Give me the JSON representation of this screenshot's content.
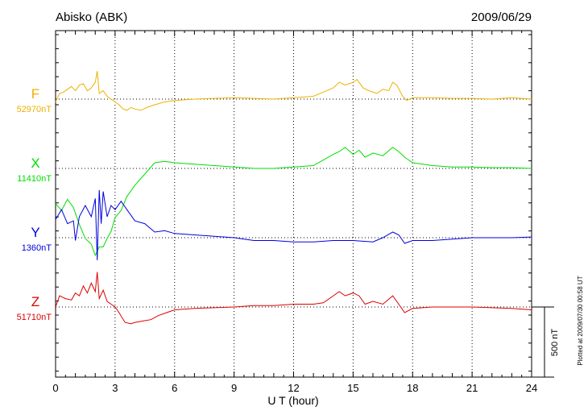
{
  "chart_data": {
    "type": "line",
    "title": "Abisko (ABK)",
    "date": "2009/06/29",
    "xlabel": "U T (hour)",
    "xlim": [
      0,
      24
    ],
    "xticks": [
      "0",
      "3",
      "6",
      "9",
      "12",
      "15",
      "18",
      "21",
      "24"
    ],
    "scale_bar_label": "500 nT",
    "plotted_note": "Plotted at 2009/07/30 00:58 UT",
    "series": [
      {
        "name": "F",
        "baseline_label": "52970nT",
        "color": "#f0b000",
        "x": [
          0,
          0.2,
          0.4,
          0.6,
          0.8,
          1.0,
          1.2,
          1.4,
          1.6,
          1.8,
          2.0,
          2.1,
          2.2,
          2.4,
          2.6,
          2.8,
          3.0,
          3.2,
          3.4,
          3.6,
          3.8,
          4.0,
          4.3,
          4.6,
          5.0,
          5.5,
          6.0,
          7.0,
          8.0,
          9.0,
          10.0,
          11.0,
          12.0,
          13.0,
          13.5,
          14.0,
          14.3,
          14.6,
          15.0,
          15.2,
          15.5,
          15.8,
          16.2,
          16.5,
          16.8,
          17.0,
          17.2,
          17.5,
          17.7,
          18.0,
          19.0,
          20.0,
          21.0,
          22.0,
          23.0,
          24.0
        ],
        "values": [
          -20,
          40,
          50,
          70,
          90,
          60,
          100,
          110,
          60,
          80,
          120,
          200,
          40,
          60,
          20,
          0,
          -20,
          -40,
          -70,
          -80,
          -60,
          -70,
          -80,
          -60,
          -40,
          -20,
          -10,
          0,
          5,
          10,
          5,
          0,
          10,
          20,
          50,
          80,
          120,
          100,
          120,
          140,
          80,
          60,
          40,
          70,
          60,
          120,
          100,
          20,
          -10,
          10,
          10,
          5,
          5,
          0,
          10,
          0
        ]
      },
      {
        "name": "X",
        "baseline_label": "11410nT",
        "color": "#00dd00",
        "x": [
          0,
          0.3,
          0.6,
          0.9,
          1.2,
          1.5,
          1.8,
          2.0,
          2.2,
          2.4,
          2.6,
          2.8,
          3.0,
          3.3,
          3.6,
          4.0,
          4.5,
          5.0,
          5.5,
          6.0,
          7.0,
          8.0,
          9.0,
          10.0,
          11.0,
          12.0,
          13.0,
          13.5,
          14.0,
          14.3,
          14.6,
          15.0,
          15.3,
          15.6,
          16.0,
          16.5,
          17.0,
          17.3,
          17.6,
          18.0,
          19.0,
          20.0,
          21.0,
          22.0,
          23.0,
          24.0
        ],
        "values": [
          -250,
          -300,
          -220,
          -280,
          -400,
          -500,
          -540,
          -620,
          -560,
          -560,
          -500,
          -450,
          -350,
          -300,
          -200,
          -120,
          -40,
          40,
          50,
          40,
          30,
          20,
          10,
          0,
          0,
          10,
          20,
          60,
          100,
          120,
          150,
          100,
          130,
          80,
          110,
          90,
          150,
          120,
          80,
          40,
          20,
          10,
          10,
          5,
          5,
          0
        ]
      },
      {
        "name": "Y",
        "baseline_label": "1360nT",
        "color": "#0000dd",
        "x": [
          0,
          0.3,
          0.6,
          0.9,
          1.0,
          1.2,
          1.5,
          1.8,
          2.0,
          2.1,
          2.2,
          2.3,
          2.4,
          2.6,
          2.8,
          3.0,
          3.3,
          3.6,
          4.0,
          4.5,
          5.0,
          5.5,
          6.0,
          7.0,
          8.0,
          9.0,
          10.0,
          11.0,
          12.0,
          13.0,
          14.0,
          15.0,
          16.0,
          16.5,
          17.0,
          17.3,
          17.6,
          18.0,
          19.0,
          20.0,
          21.0,
          22.0,
          23.0,
          24.0
        ],
        "values": [
          130,
          200,
          100,
          120,
          -20,
          150,
          230,
          150,
          280,
          -160,
          340,
          100,
          330,
          150,
          230,
          200,
          260,
          200,
          120,
          100,
          40,
          50,
          30,
          20,
          10,
          0,
          -20,
          -20,
          -30,
          -30,
          -20,
          -20,
          -30,
          0,
          40,
          20,
          -40,
          -20,
          -20,
          -10,
          0,
          0,
          0,
          5
        ]
      },
      {
        "name": "Z",
        "baseline_label": "51710nT",
        "color": "#dd0000",
        "x": [
          0,
          0.2,
          0.5,
          0.8,
          1.0,
          1.2,
          1.4,
          1.6,
          1.8,
          2.0,
          2.1,
          2.2,
          2.4,
          2.6,
          2.8,
          3.0,
          3.2,
          3.5,
          3.8,
          4.0,
          4.4,
          4.8,
          5.2,
          5.6,
          6.0,
          7.0,
          8.0,
          9.0,
          10.0,
          11.0,
          12.0,
          13.0,
          13.5,
          14.0,
          14.3,
          14.6,
          15.0,
          15.3,
          15.6,
          16.0,
          16.5,
          17.0,
          17.3,
          17.6,
          18.0,
          19.0,
          20.0,
          21.0,
          22.0,
          23.0,
          24.0
        ],
        "values": [
          0,
          80,
          60,
          50,
          100,
          80,
          150,
          100,
          170,
          110,
          250,
          60,
          120,
          40,
          20,
          0,
          -40,
          -110,
          -120,
          -110,
          -100,
          -90,
          -60,
          -40,
          -20,
          -10,
          -5,
          0,
          10,
          10,
          20,
          20,
          30,
          80,
          110,
          80,
          100,
          80,
          20,
          40,
          20,
          80,
          20,
          -40,
          -10,
          0,
          0,
          0,
          -5,
          -10,
          -20
        ]
      }
    ]
  }
}
